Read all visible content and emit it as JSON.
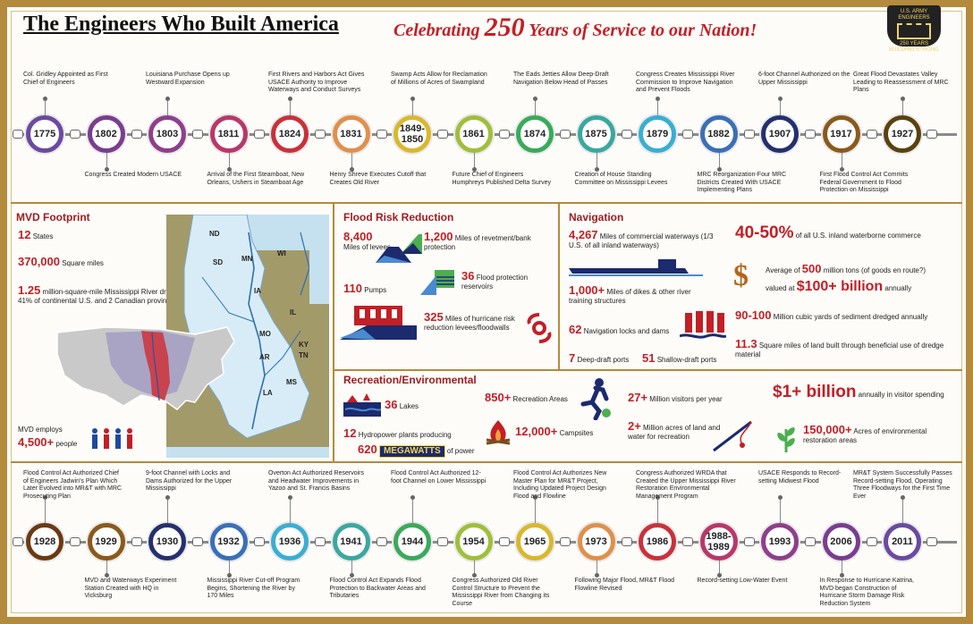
{
  "header": {
    "title": "The Engineers Who Built America",
    "subtitle_pre": "Celebrating ",
    "subtitle_num": "250",
    "subtitle_post": " Years of Service to our Nation!",
    "logo_text_top": "U.S. ARMY ENGINEERS",
    "logo_text_mid": "250 YEARS",
    "logo_text_bottom": "BUILDING STRONG"
  },
  "colors": {
    "accent_red": "#c21f26",
    "frame_gold": "#b48a3c",
    "navy": "#1c2a6e"
  },
  "timeline_top": {
    "years": [
      "1775",
      "1802",
      "1803",
      "1811",
      "1824",
      "1831",
      "1849-1850",
      "1861",
      "1874",
      "1875",
      "1879",
      "1882",
      "1907",
      "1917",
      "1927"
    ],
    "ring_colors": [
      "#6b4aa0",
      "#7a3d8f",
      "#8e3f8a",
      "#b8386a",
      "#c8323a",
      "#e0904a",
      "#d9b82c",
      "#9fbf3a",
      "#3aaa5a",
      "#3aa8a0",
      "#3aaed2",
      "#3a6fb8",
      "#24306e",
      "#8a5a1c",
      "#5a4210"
    ],
    "above": [
      {
        "i": 0,
        "text": "Col. Gridley Appointed as First Chief of Engineers"
      },
      {
        "i": 2,
        "text": "Louisiana Purchase Opens up Westward Expansion"
      },
      {
        "i": 4,
        "text": "First Rivers and Harbors Act Gives USACE Authority to Improve Waterways and Conduct Surveys"
      },
      {
        "i": 6,
        "text": "Swamp Acts Allow for Reclamation of Millions of Acres of Swampland"
      },
      {
        "i": 8,
        "text": "The Eads Jetties Allow Deep-Draft Navigation Below Head of Passes"
      },
      {
        "i": 10,
        "text": "Congress Creates Mississippi River Commission to Improve Navigation and Prevent Floods"
      },
      {
        "i": 12,
        "text": "6-foot Channel Authorized on the Upper Mississippi"
      },
      {
        "i": 14,
        "text": "Great Flood Devastates Valley Leading to Reassessment of MRC Plans"
      }
    ],
    "below": [
      {
        "i": 1,
        "text": "Congress Created Modern USACE"
      },
      {
        "i": 3,
        "text": "Arrival of the First Steamboat, New Orleans, Ushers in Steamboat Age"
      },
      {
        "i": 5,
        "text": "Henry Shreve Executes Cutoff that Creates Old River"
      },
      {
        "i": 7,
        "text": "Future Chief of Engineers Humphreys Published Delta Survey"
      },
      {
        "i": 9,
        "text": "Creation of House Standing Committee on Mississippi Levees"
      },
      {
        "i": 11,
        "text": "MRC Reorganization-Four MRC Districts Created With USACE Implementing Plans"
      },
      {
        "i": 13,
        "text": "First Flood Control Act Commits Federal Government to Flood Protection on Mississippi"
      }
    ]
  },
  "mvd": {
    "title": "MVD Footprint",
    "states_num": "12",
    "states_label": " States",
    "area_num": "370,000",
    "area_label": " Square miles",
    "basin_num": "1.25",
    "basin_label": " million-square-mile Mississippi River drainage basin / 41% of continental U.S. and 2 Canadian provinces.",
    "employs_label": "MVD employs",
    "people_num": "4,500+",
    "people_label": " people",
    "map_states": [
      "ND",
      "SD",
      "MN",
      "WI",
      "IA",
      "IL",
      "MO",
      "KY",
      "TN",
      "AR",
      "MS",
      "LA"
    ]
  },
  "flood": {
    "title": "Flood Risk Reduction",
    "levees_num": "8,400",
    "levees_label": "Miles of levees",
    "revet_num": "1,200",
    "revet_label": " Miles of revetment/bank protection",
    "pumps_num": "110",
    "pumps_label": " Pumps",
    "reservoirs_num": "36",
    "reservoirs_label": " Flood protection reservoirs",
    "hurricane_num": "325",
    "hurricane_label": " Miles of hurricane risk reduction levees/floodwalls"
  },
  "navigation": {
    "title": "Navigation",
    "waterways_num": "4,267",
    "waterways_label": " Miles of commercial waterways (1/3 U.S. of all inland waterways)",
    "commerce_num": "40-50%",
    "commerce_label": " of all U.S. inland waterborne commerce",
    "tons_pre": "Average of ",
    "tons_num": "500",
    "tons_post": " million tons (of goods en route?)",
    "valued_pre": "valued at ",
    "valued_num": "$100+ billion",
    "valued_post": " annually",
    "dikes_num": "1,000+",
    "dikes_label": " Miles of dikes & other river training structures",
    "sediment_num": "90-100",
    "sediment_label": " Million cubic yards of sediment dredged annually",
    "locks_num": "62",
    "locks_label": " Navigation locks and dams",
    "land_num": "11.3",
    "land_label": " Square miles of land built through beneficial use of dredge material",
    "deep_num": "7",
    "deep_label": " Deep-draft ports",
    "shallow_num": "51",
    "shallow_label": " Shallow-draft ports"
  },
  "recreation": {
    "title": "Recreation/Environmental",
    "lakes_num": "36",
    "lakes_label": " Lakes",
    "areas_num": "850+",
    "areas_label": " Recreation Areas",
    "visitors_num": "27+",
    "visitors_label": " Million visitors per year",
    "spending_num": "$1+ billion",
    "spending_label": " annually in visitor spending",
    "hydro_num": "12",
    "hydro_label": " Hydropower plants producing",
    "power_num": "620",
    "power_box": "MEGAWATTS",
    "power_label": " of power",
    "camp_num": "12,000+",
    "camp_label": " Campsites",
    "acres_num": "2+",
    "acres_label": " Million acres of land and water for recreation",
    "restore_num": "150,000+",
    "restore_label": " Acres of environmental restoration areas"
  },
  "timeline_bottom": {
    "years": [
      "1928",
      "1929",
      "1930",
      "1932",
      "1936",
      "1941",
      "1944",
      "1954",
      "1965",
      "1973",
      "1986",
      "1988-1989",
      "1993",
      "2006",
      "2011"
    ],
    "ring_colors": [
      "#6b3a12",
      "#8a5a1c",
      "#24306e",
      "#3a6fb8",
      "#3aaed2",
      "#3aa8a0",
      "#3aaa5a",
      "#9fbf3a",
      "#d9b82c",
      "#e0904a",
      "#c8323a",
      "#b8386a",
      "#8e3f8a",
      "#7a3d8f",
      "#6b4aa0"
    ],
    "above": [
      {
        "i": 0,
        "text": "Flood Control Act Authorized Chief of Engineers Jadwin's Plan Which Later Evolved into MR&T with MRC Prosecuting Plan"
      },
      {
        "i": 2,
        "text": "9-foot Channel with Locks and Dams Authorized for the Upper Mississippi"
      },
      {
        "i": 4,
        "text": "Overton Act Authorized Reservoirs and Headwater Improvements in Yazoo and St. Francis Basins"
      },
      {
        "i": 6,
        "text": "Flood Control Act Authorized 12-foot Channel on Lower Mississippi"
      },
      {
        "i": 8,
        "text": "Flood Control Act Authorizes New Master Plan for MR&T Project, Including Updated Project Design Flood and Flowline"
      },
      {
        "i": 10,
        "text": "Congress Authorized WRDA that Created the Upper Mississippi River Restoration Environmental Management Program"
      },
      {
        "i": 12,
        "text": "USACE Responds to Record-setting Midwest Flood"
      },
      {
        "i": 14,
        "text": "MR&T System Successfully Passes Record-setting Flood, Operating Three Floodways for the First Time Ever"
      }
    ],
    "below": [
      {
        "i": 1,
        "text": "MVD and Waterways Experiment Station Created with HQ in Vicksburg"
      },
      {
        "i": 3,
        "text": "Mississippi River Cut-off Program Begins, Shortening the River by 170 Miles"
      },
      {
        "i": 5,
        "text": "Flood Control Act Expands Flood Protection to Backwater Areas and Tributaries"
      },
      {
        "i": 7,
        "text": "Congress Authorized Old River Control Structure to Prevent the Mississippi River from Changing its Course"
      },
      {
        "i": 9,
        "text": "Following Major Flood, MR&T Flood Flowline Revised"
      },
      {
        "i": 11,
        "text": "Record-setting Low-Water Event"
      },
      {
        "i": 13,
        "text": "In Response to Hurricane Katrina, MVD began Construction of Hurricane Storm Damage Risk Reduction System"
      }
    ]
  }
}
